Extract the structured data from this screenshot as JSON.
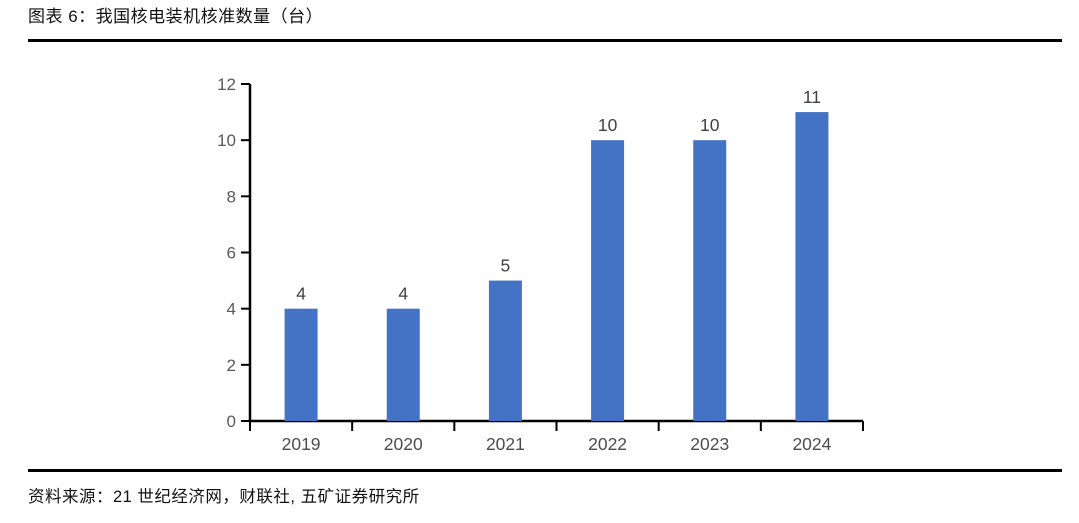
{
  "header": {
    "title": "图表 6：我国核电装机核准数量（台）"
  },
  "footer": {
    "source": "资料来源：21 世纪经济网，财联社, 五矿证券研究所"
  },
  "chart_data": {
    "type": "bar",
    "title": "我国核电装机核准数量（台）",
    "categories": [
      "2019",
      "2020",
      "2021",
      "2022",
      "2023",
      "2024"
    ],
    "values": [
      4,
      4,
      5,
      10,
      10,
      11
    ],
    "xlabel": "",
    "ylabel": "",
    "ylim": [
      0,
      12
    ],
    "yticks": [
      0,
      2,
      4,
      6,
      8,
      10,
      12
    ],
    "grid": false,
    "legend": false,
    "show_data_labels": true,
    "colors": {
      "bar": "#4472C4",
      "axis": "#000000",
      "tick_label": "#595959",
      "category_label": "#4d4d4d",
      "data_label": "#404040"
    }
  }
}
